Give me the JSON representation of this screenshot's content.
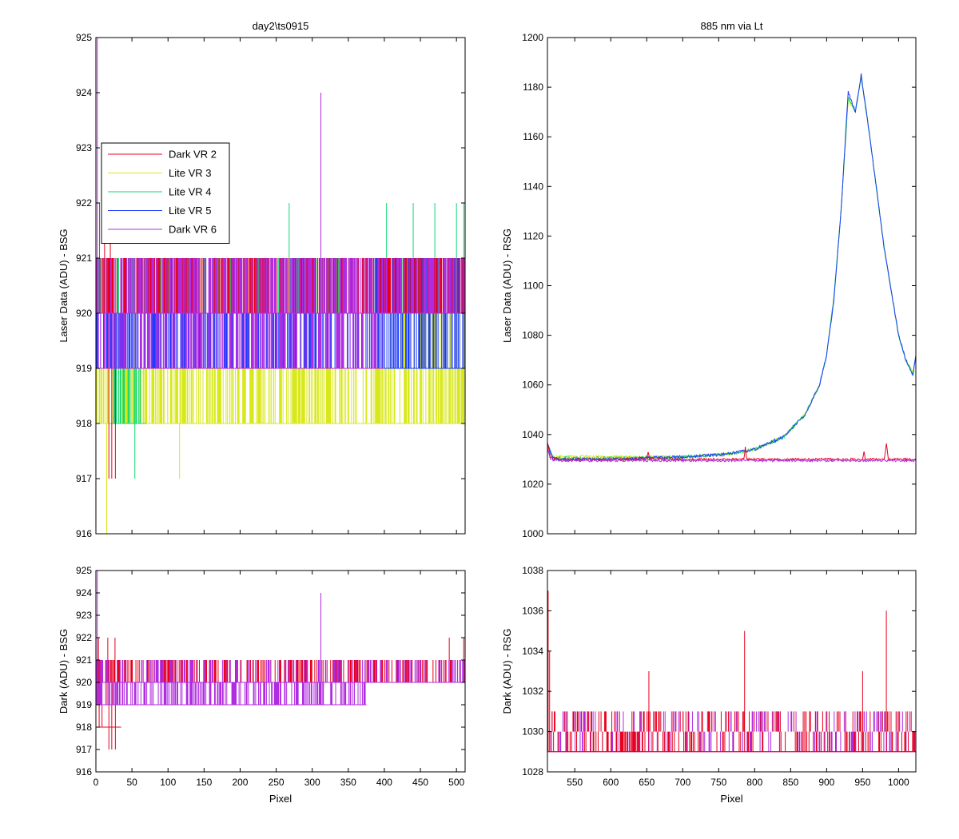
{
  "colors": {
    "dark_vr2": "#e8001c",
    "lite_vr3": "#d8e81a",
    "lite_vr4": "#10d872",
    "lite_vr5": "#1e3cff",
    "dark_vr6": "#b02ce0",
    "axis": "#000000",
    "background": "#ffffff"
  },
  "chart_data": [
    {
      "id": "top-left",
      "type": "line",
      "title": "day2\\ts0915",
      "xlabel": "",
      "ylabel": "Laser Data (ADU) - BSG",
      "xlim": [
        0,
        512
      ],
      "ylim": [
        916,
        925
      ],
      "xticks": [
        0,
        50,
        100,
        150,
        200,
        250,
        300,
        350,
        400,
        450,
        500
      ],
      "xticklabels": [
        "",
        "",
        "",
        "",
        "",
        "",
        "",
        "",
        "",
        "",
        ""
      ],
      "yticks": [
        916,
        917,
        918,
        919,
        920,
        921,
        922,
        923,
        924,
        925
      ],
      "yticklabels": [
        "916",
        "917",
        "918",
        "919",
        "920",
        "921",
        "922",
        "923",
        "924",
        "925"
      ],
      "legend": {
        "position": "upper-left",
        "entries": [
          {
            "name": "Dark VR 2",
            "color_key": "dark_vr2"
          },
          {
            "name": "Lite VR 3",
            "color_key": "lite_vr3"
          },
          {
            "name": "Lite VR 4",
            "color_key": "lite_vr4"
          },
          {
            "name": "Lite VR 5",
            "color_key": "lite_vr5"
          },
          {
            "name": "Dark VR 6",
            "color_key": "dark_vr6"
          }
        ]
      },
      "series": [
        {
          "name": "Lite VR 3",
          "color_key": "lite_vr3",
          "segments": [
            {
              "x": [
                0,
                512
              ],
              "levels": [
                918,
                919
              ],
              "density": 0.55
            },
            {
              "x": [
                405,
                512
              ],
              "levels": [
                919,
                920
              ],
              "density": 0.35
            }
          ],
          "spikes": [
            [
              15,
              916
            ],
            [
              116,
              917
            ]
          ]
        },
        {
          "name": "Lite VR 4",
          "color_key": "lite_vr4",
          "segments": [
            {
              "x": [
                0,
                512
              ],
              "levels": [
                920,
                921
              ],
              "density": 0.45
            },
            {
              "x": [
                20,
                70
              ],
              "levels": [
                918,
                919
              ],
              "density": 0.5
            }
          ],
          "spikes": [
            [
              54,
              917
            ],
            [
              268,
              922
            ],
            [
              403,
              922
            ],
            [
              440,
              922
            ],
            [
              470,
              922
            ],
            [
              500,
              922
            ],
            [
              510,
              922
            ]
          ]
        },
        {
          "name": "Lite VR 5",
          "color_key": "lite_vr5",
          "segments": [
            {
              "x": [
                0,
                512
              ],
              "levels": [
                919,
                920
              ],
              "density": 0.5
            },
            {
              "x": [
                370,
                512
              ],
              "levels": [
                920,
                921
              ],
              "density": 0.6
            }
          ],
          "spikes": []
        },
        {
          "name": "Dark VR 2",
          "color_key": "dark_vr2",
          "segments": [
            {
              "x": [
                0,
                512
              ],
              "levels": [
                920,
                921
              ],
              "density": 0.55
            }
          ],
          "spikes": [
            [
              18,
              917
            ],
            [
              22,
              917
            ],
            [
              27,
              917
            ],
            [
              12,
              922
            ],
            [
              20,
              922
            ]
          ]
        },
        {
          "name": "Dark VR 6",
          "color_key": "dark_vr6",
          "segments": [
            {
              "x": [
                0,
                512
              ],
              "levels": [
                920,
                921
              ],
              "density": 0.5
            },
            {
              "x": [
                0,
                400
              ],
              "levels": [
                919,
                920
              ],
              "density": 0.4
            }
          ],
          "spikes": [
            [
              312,
              924
            ],
            [
              2,
              925
            ],
            [
              5,
              922
            ]
          ]
        }
      ]
    },
    {
      "id": "top-right",
      "type": "line",
      "title": "885 nm via Lt",
      "xlabel": "",
      "ylabel": "Laser Data (ADU) - RSG",
      "xlim": [
        512,
        1024
      ],
      "ylim": [
        1000,
        1200
      ],
      "xticks": [
        550,
        600,
        650,
        700,
        750,
        800,
        850,
        900,
        950,
        1000
      ],
      "xticklabels": [
        "",
        "",
        "",
        "",
        "",
        "",
        "",
        "",
        "",
        ""
      ],
      "yticks": [
        1000,
        1020,
        1040,
        1060,
        1080,
        1100,
        1120,
        1140,
        1160,
        1180,
        1200
      ],
      "yticklabels": [
        "1000",
        "1020",
        "1040",
        "1060",
        "1080",
        "1100",
        "1120",
        "1140",
        "1160",
        "1180",
        "1200"
      ],
      "series": [
        {
          "name": "Lite VR 3",
          "color_key": "lite_vr3",
          "x": [
            512,
            520,
            600,
            700,
            760,
            800,
            840,
            870,
            890,
            900,
            910,
            920,
            930,
            940,
            948,
            960,
            980,
            1000,
            1010,
            1020,
            1024
          ],
          "y": [
            1036,
            1031,
            1031,
            1031,
            1032,
            1034,
            1039,
            1048,
            1060,
            1072,
            1095,
            1130,
            1175,
            1170,
            1185,
            1160,
            1115,
            1080,
            1070,
            1065,
            1070
          ]
        },
        {
          "name": "Lite VR 4",
          "color_key": "lite_vr4",
          "x": [
            512,
            520,
            600,
            700,
            760,
            800,
            840,
            870,
            890,
            900,
            910,
            920,
            930,
            940,
            948,
            960,
            980,
            1000,
            1010,
            1020,
            1024
          ],
          "y": [
            1036,
            1030.5,
            1030.5,
            1031,
            1032,
            1034,
            1039,
            1048,
            1060,
            1072,
            1095,
            1130,
            1176,
            1170,
            1184,
            1160,
            1115,
            1080,
            1070,
            1064,
            1072
          ]
        },
        {
          "name": "Lite VR 5",
          "color_key": "lite_vr5",
          "x": [
            512,
            520,
            600,
            700,
            760,
            800,
            840,
            870,
            890,
            900,
            910,
            920,
            930,
            940,
            948,
            960,
            980,
            1000,
            1010,
            1020,
            1024
          ],
          "y": [
            1036,
            1030,
            1030,
            1031,
            1032,
            1034,
            1039,
            1048,
            1060,
            1072,
            1094,
            1130,
            1178,
            1170,
            1185,
            1160,
            1115,
            1080,
            1070,
            1064,
            1072
          ]
        },
        {
          "name": "Dark VR 2",
          "color_key": "dark_vr2",
          "x": [
            512,
            516,
            530,
            650,
            652,
            654,
            700,
            785,
            787,
            789,
            900,
            950,
            952,
            954,
            980,
            983,
            986,
            1024
          ],
          "y": [
            1037,
            1031,
            1030,
            1030,
            1033,
            1030,
            1030,
            1030,
            1035,
            1030,
            1030,
            1030,
            1033,
            1030,
            1030,
            1036,
            1030,
            1030
          ]
        },
        {
          "name": "Dark VR 6",
          "color_key": "dark_vr6",
          "x": [
            512,
            516,
            530,
            700,
            800,
            900,
            1000,
            1024
          ],
          "y": [
            1035,
            1030,
            1029.5,
            1029.5,
            1029.5,
            1029.5,
            1029.5,
            1029.5
          ]
        }
      ]
    },
    {
      "id": "bottom-left",
      "type": "line",
      "title": "",
      "xlabel": "Pixel",
      "ylabel": "Dark (ADU) - BSG",
      "xlim": [
        0,
        512
      ],
      "ylim": [
        916,
        925
      ],
      "xticks": [
        0,
        50,
        100,
        150,
        200,
        250,
        300,
        350,
        400,
        450,
        500
      ],
      "xticklabels": [
        "0",
        "50",
        "100",
        "150",
        "200",
        "250",
        "300",
        "350",
        "400",
        "450",
        "500"
      ],
      "yticks": [
        916,
        917,
        918,
        919,
        920,
        921,
        922,
        923,
        924,
        925
      ],
      "yticklabels": [
        "916",
        "917",
        "918",
        "919",
        "920",
        "921",
        "922",
        "923",
        "924",
        "925"
      ],
      "series": [
        {
          "name": "Dark VR 2",
          "color_key": "dark_vr2",
          "segments": [
            {
              "x": [
                0,
                512
              ],
              "levels": [
                920,
                921
              ],
              "density": 0.35
            },
            {
              "x": [
                0,
                35
              ],
              "levels": [
                918,
                922
              ],
              "density": 0.6
            }
          ],
          "spikes": [
            [
              18,
              917
            ],
            [
              22,
              917
            ],
            [
              27,
              917
            ],
            [
              490,
              922
            ],
            [
              510,
              922
            ]
          ]
        },
        {
          "name": "Dark VR 6",
          "color_key": "dark_vr6",
          "segments": [
            {
              "x": [
                0,
                512
              ],
              "levels": [
                920,
                921
              ],
              "density": 0.25
            },
            {
              "x": [
                0,
                375
              ],
              "levels": [
                919,
                920
              ],
              "density": 0.45
            }
          ],
          "spikes": [
            [
              312,
              924
            ],
            [
              2,
              925
            ]
          ]
        }
      ]
    },
    {
      "id": "bottom-right",
      "type": "line",
      "title": "",
      "xlabel": "Pixel",
      "ylabel": "Dark (ADU) - RSG",
      "xlim": [
        512,
        1024
      ],
      "ylim": [
        1028,
        1038
      ],
      "xticks": [
        550,
        600,
        650,
        700,
        750,
        800,
        850,
        900,
        950,
        1000
      ],
      "xticklabels": [
        "550",
        "600",
        "650",
        "700",
        "750",
        "800",
        "850",
        "900",
        "950",
        "1000"
      ],
      "yticks": [
        1028,
        1030,
        1032,
        1034,
        1036,
        1038
      ],
      "yticklabels": [
        "1028",
        "1030",
        "1032",
        "1034",
        "1036",
        "1038"
      ],
      "series": [
        {
          "name": "Dark VR 6",
          "color_key": "dark_vr6",
          "segments": [
            {
              "x": [
                512,
                1024
              ],
              "levels": [
                1029,
                1031
              ],
              "density": 0.35
            }
          ],
          "spikes": []
        },
        {
          "name": "Dark VR 2",
          "color_key": "dark_vr2",
          "segments": [
            {
              "x": [
                512,
                1024
              ],
              "levels": [
                1029,
                1031
              ],
              "density": 0.45
            }
          ],
          "spikes": [
            [
              513,
              1037
            ],
            [
              515,
              1034
            ],
            [
              653,
              1033
            ],
            [
              786,
              1035
            ],
            [
              950,
              1033
            ],
            [
              983,
              1036
            ]
          ]
        }
      ]
    }
  ]
}
